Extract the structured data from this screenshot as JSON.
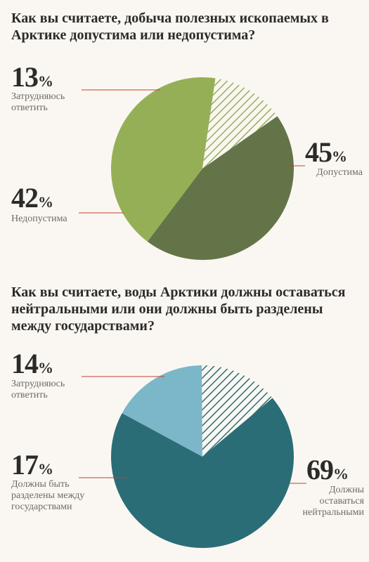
{
  "background_color": "#faf7f2",
  "chart1": {
    "type": "pie",
    "title": "Как вы считаете, добыча полезных ископаемых в Арктике допустима или недопустима?",
    "title_fontsize": 20,
    "title_font_weight": 700,
    "title_color": "#2b2b28",
    "radius": 130,
    "slices": [
      {
        "value": 45,
        "start_deg": -35,
        "label": "Допустима",
        "label_color": "#6d6b63",
        "fill": "#647449",
        "stripe": false,
        "pct_text": "45",
        "pct_fontsize": 40,
        "label_fontsize": 14
      },
      {
        "value": 42,
        "start_deg": 127,
        "label": "Недопустима",
        "label_color": "#6d6b63",
        "fill": "#95af57",
        "stripe": false,
        "pct_text": "42",
        "pct_fontsize": 40,
        "label_fontsize": 14
      },
      {
        "value": 13,
        "start_deg": 278.2,
        "label": "Затрудняюсь ответить",
        "label_color": "#6d6b63",
        "fill": "#c6d49a",
        "stripe": true,
        "stripe_color": "#95af57",
        "pct_text": "13",
        "pct_fontsize": 40,
        "label_fontsize": 14
      }
    ]
  },
  "chart2": {
    "type": "pie",
    "title": "Как вы считаете, воды Арктики должны оставаться нейтральными или они должны быть разделены между государствами?",
    "title_fontsize": 20,
    "title_font_weight": 700,
    "title_color": "#2b2b28",
    "radius": 130,
    "slices": [
      {
        "value": 69,
        "start_deg": -40,
        "label": "Должны оставаться нейтральными",
        "label_color": "#6d6b63",
        "fill": "#2a6d77",
        "stripe": false,
        "pct_text": "69",
        "pct_fontsize": 40,
        "label_fontsize": 14
      },
      {
        "value": 17,
        "start_deg": 208.4,
        "label": "Должны быть разделены между государствами",
        "label_color": "#6d6b63",
        "fill": "#7cb6c9",
        "stripe": false,
        "pct_text": "17",
        "pct_fontsize": 40,
        "label_fontsize": 14
      },
      {
        "value": 14,
        "start_deg": 269.6,
        "label": "Затрудняюсь ответить",
        "label_color": "#6d6b63",
        "fill": "#bfe0e8",
        "stripe": true,
        "stripe_color": "#2a6d77",
        "pct_text": "14",
        "pct_fontsize": 40,
        "label_fontsize": 14
      }
    ]
  },
  "percent_symbol": "%",
  "leader_line_color": "#c2412f"
}
